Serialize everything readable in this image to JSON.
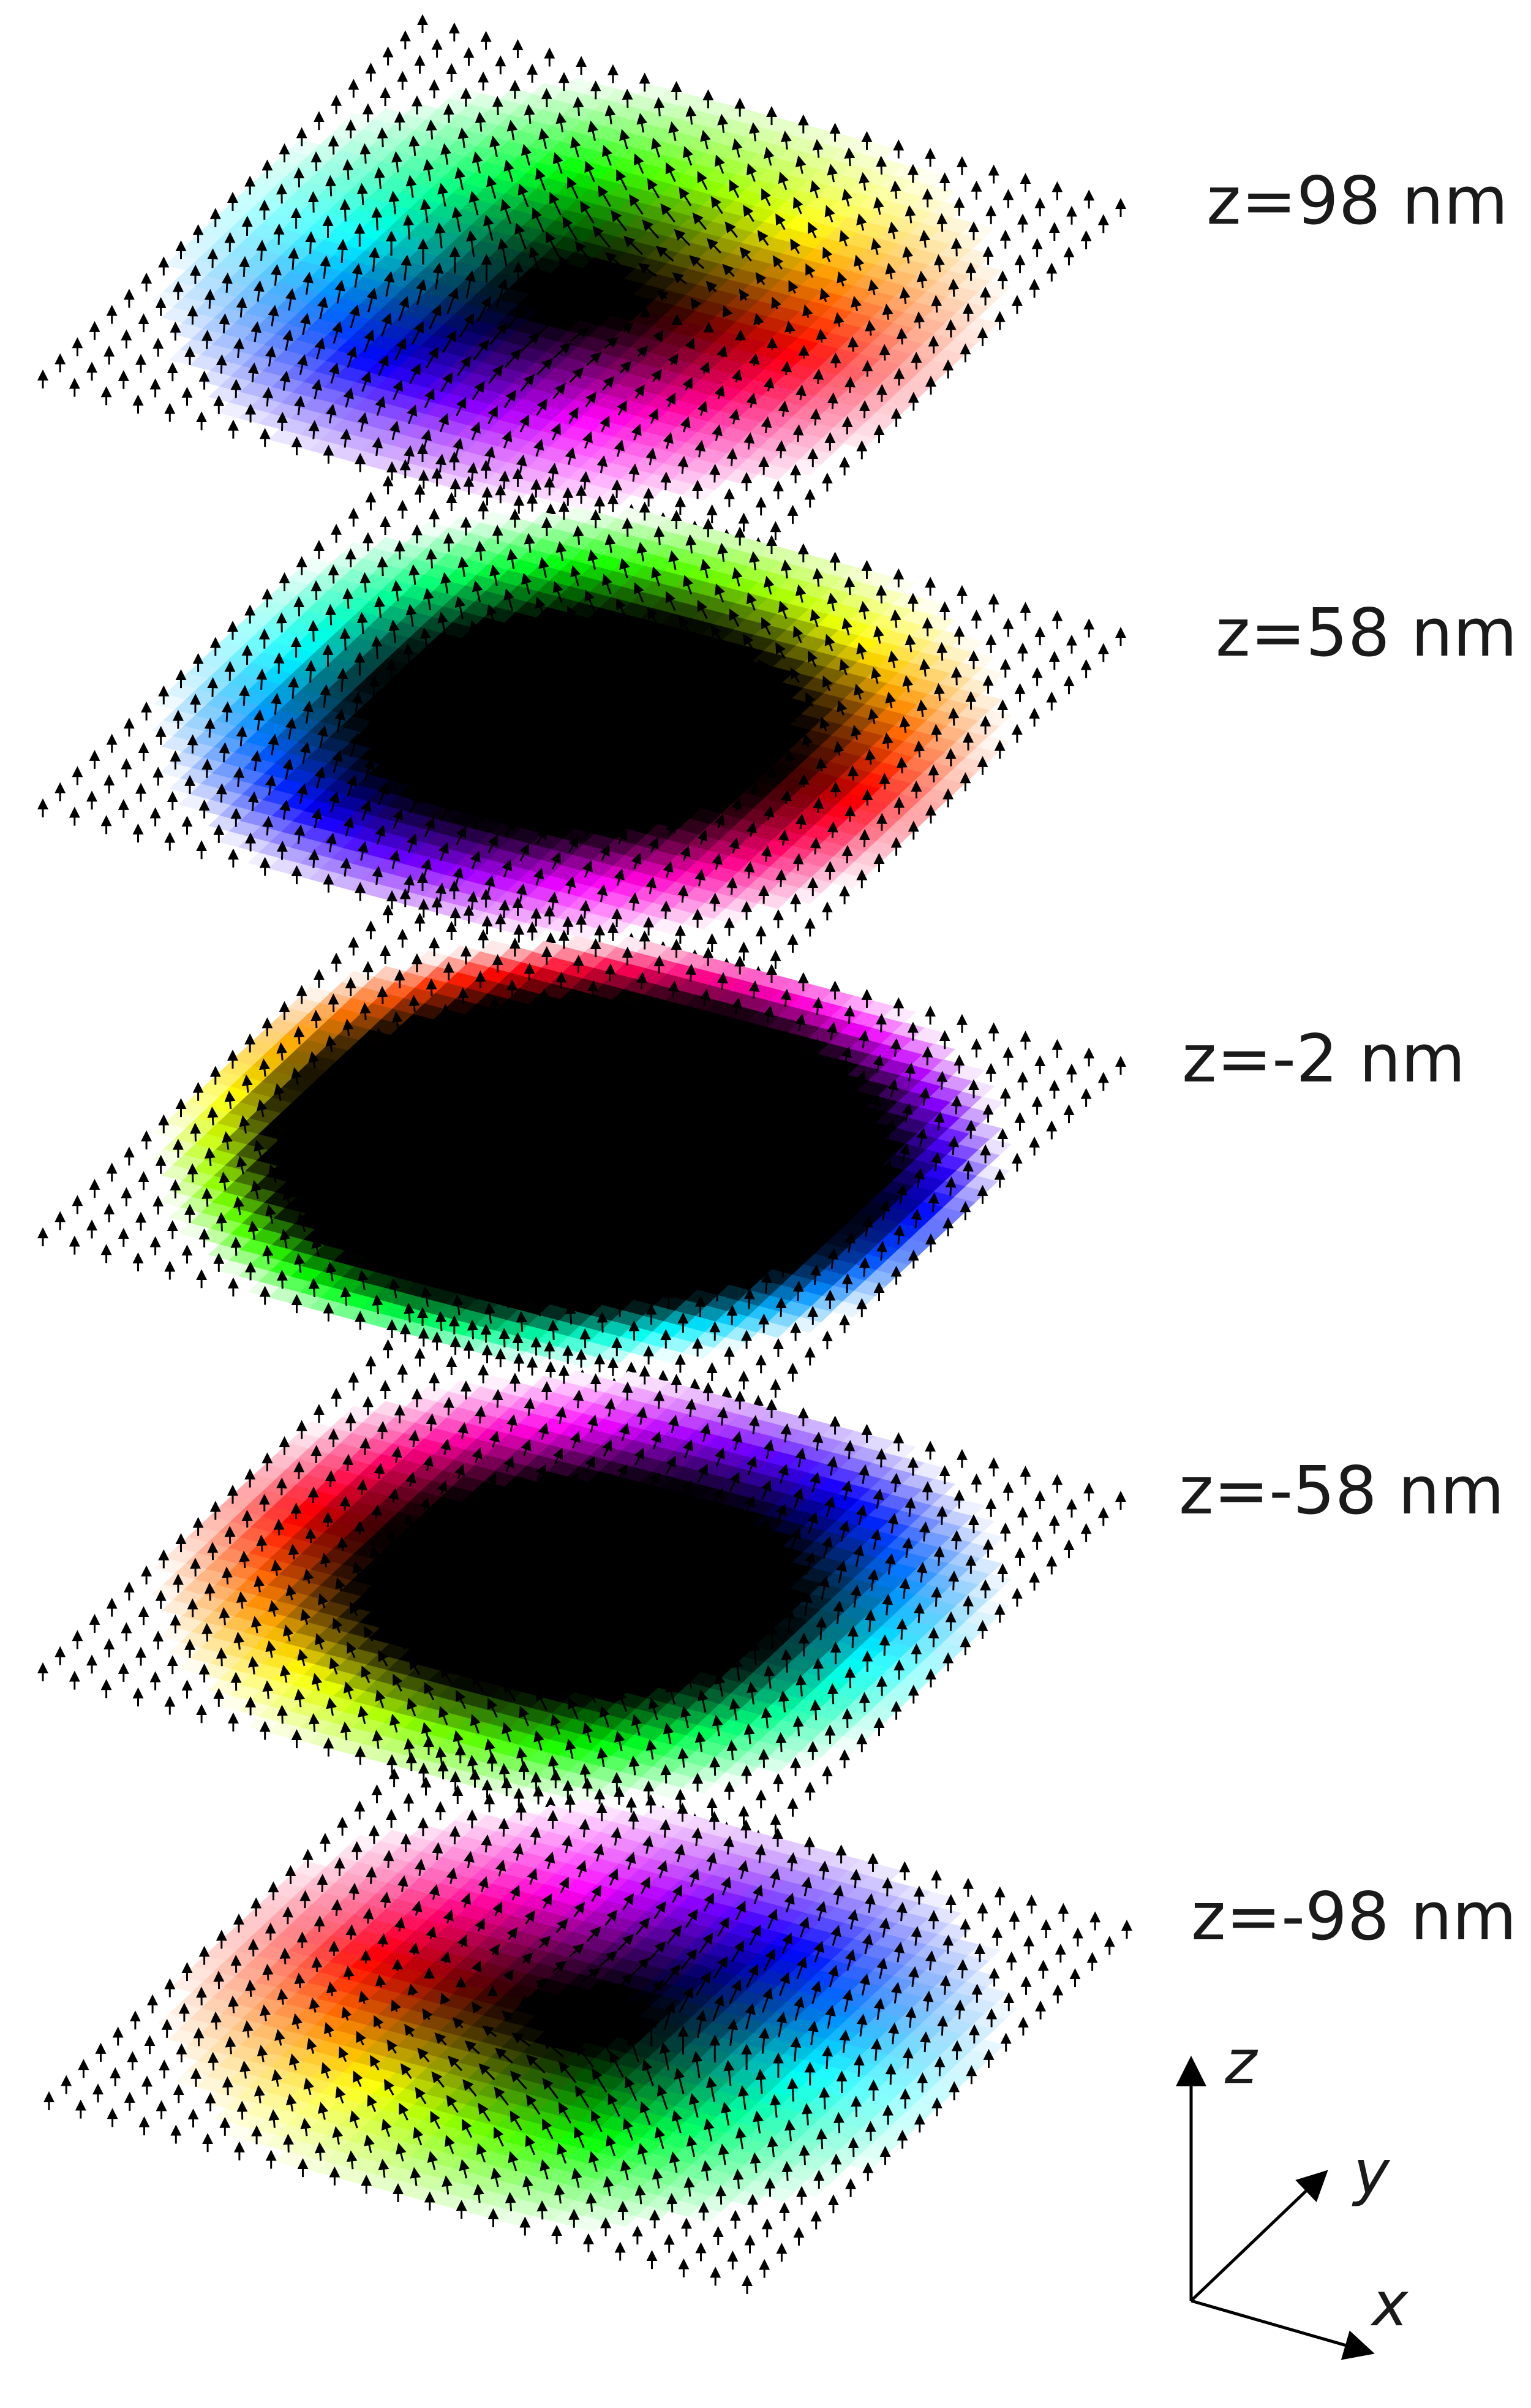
{
  "slices": [
    {
      "label": "z=98 nm",
      "core": 0.15,
      "ring": 0.62,
      "offset": 0
    },
    {
      "label": "z=58 nm",
      "core": 0.55,
      "ring": 0.8,
      "offset": 0
    },
    {
      "label": "z=-2 nm",
      "core": 0.78,
      "ring": 0.92,
      "offset": 4.0
    },
    {
      "label": "z=-58 nm",
      "core": 0.55,
      "ring": 0.8,
      "offset": 3.14
    },
    {
      "label": "z=-98 nm",
      "core": 0.15,
      "ring": 0.62,
      "offset": 3.14
    }
  ],
  "axes": {
    "z": "z",
    "y": "y",
    "x": "x"
  }
}
